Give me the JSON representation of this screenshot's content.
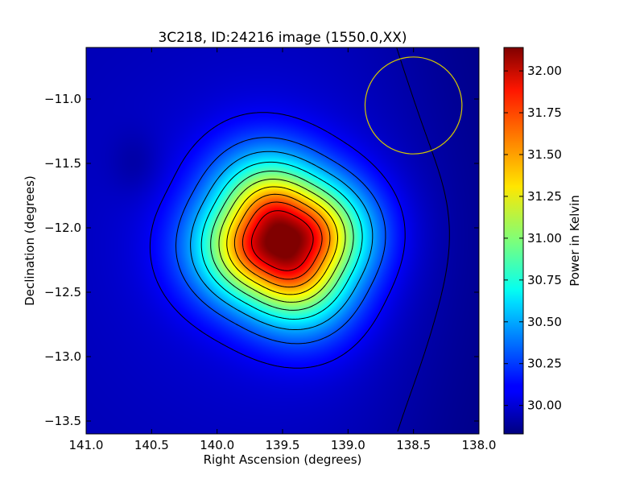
{
  "chart_data": {
    "type": "heatmap",
    "title": "3C218, ID:24216 image (1550.0,XX)",
    "xlabel": "Right Ascension (degrees)",
    "ylabel": "Declination (degrees)",
    "colorbar_label": "Power in Kelvin",
    "colormap": "jet",
    "xlim": [
      141.0,
      138.0
    ],
    "ylim": [
      -13.6,
      -10.6
    ],
    "x_ticks": [
      141.0,
      140.5,
      140.0,
      139.5,
      139.0,
      138.5,
      138.0
    ],
    "x_tick_labels": [
      "141.0",
      "140.5",
      "140.0",
      "139.5",
      "139.0",
      "138.5",
      "138.0"
    ],
    "y_ticks": [
      -11.0,
      -11.5,
      -12.0,
      -12.5,
      -13.0,
      -13.5
    ],
    "y_tick_labels": [
      "−11.0",
      "−11.5",
      "−12.0",
      "−12.5",
      "−13.0",
      "−13.5"
    ],
    "colorbar_range": [
      29.83,
      32.14
    ],
    "colorbar_ticks": [
      30.0,
      30.25,
      30.5,
      30.75,
      31.0,
      31.25,
      31.5,
      31.75,
      32.0
    ],
    "colorbar_tick_labels": [
      "30.00",
      "30.25",
      "30.50",
      "30.75",
      "31.00",
      "31.25",
      "31.50",
      "31.75",
      "32.00"
    ],
    "peak": {
      "ra": 139.5,
      "dec": -12.1,
      "value": 32.13
    },
    "beam_circle": {
      "ra": 138.5,
      "dec": -11.05,
      "radius_deg": 0.37,
      "color": "#d4c800"
    },
    "contour_color": "#000000"
  }
}
